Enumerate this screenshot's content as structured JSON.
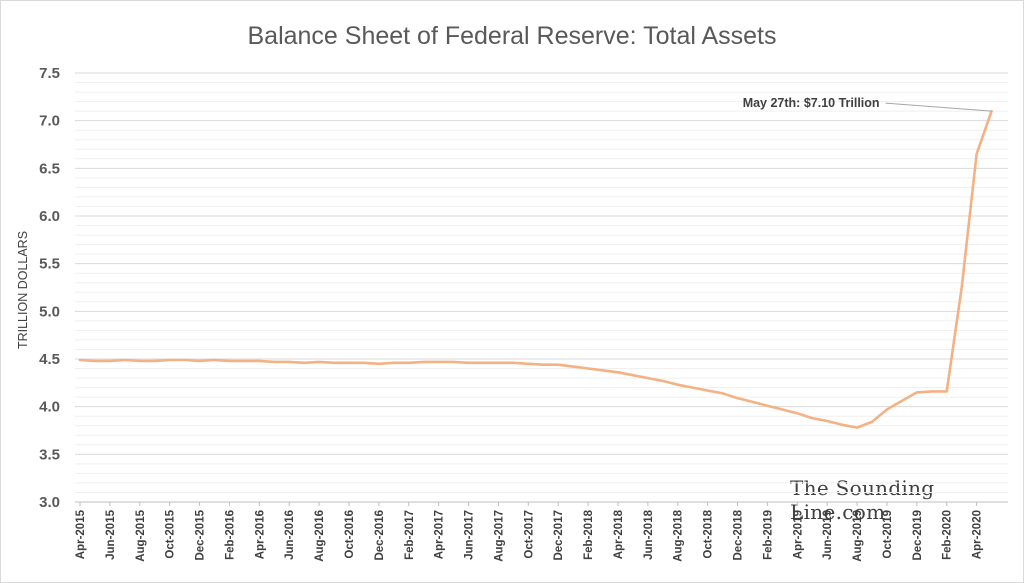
{
  "chart_data": {
    "type": "line",
    "title": "Balance Sheet of Federal Reserve: Total Assets",
    "xlabel": "",
    "ylabel": "TRILLION DOLLARS",
    "ylim": [
      3.0,
      7.5
    ],
    "yticks": [
      "3.0",
      "3.5",
      "4.0",
      "4.5",
      "5.0",
      "5.5",
      "6.0",
      "6.5",
      "7.0",
      "7.5"
    ],
    "xticks": [
      "Apr-2015",
      "Jun-2015",
      "Aug-2015",
      "Oct-2015",
      "Dec-2015",
      "Feb-2016",
      "Apr-2016",
      "Jun-2016",
      "Aug-2016",
      "Oct-2016",
      "Dec-2016",
      "Feb-2017",
      "Apr-2017",
      "Jun-2017",
      "Aug-2017",
      "Oct-2017",
      "Dec-2017",
      "Feb-2018",
      "Apr-2018",
      "Jun-2018",
      "Aug-2018",
      "Oct-2018",
      "Dec-2018",
      "Feb-2019",
      "Apr-2019",
      "Jun-2019",
      "Aug-2019",
      "Oct-2019",
      "Dec-2019",
      "Feb-2020",
      "Apr-2020"
    ],
    "grid": true,
    "series": [
      {
        "color": "#f4b183",
        "x": [
          "2015-04",
          "2015-05",
          "2015-06",
          "2015-07",
          "2015-08",
          "2015-09",
          "2015-10",
          "2015-11",
          "2015-12",
          "2016-01",
          "2016-02",
          "2016-03",
          "2016-04",
          "2016-05",
          "2016-06",
          "2016-07",
          "2016-08",
          "2016-09",
          "2016-10",
          "2016-11",
          "2016-12",
          "2017-01",
          "2017-02",
          "2017-03",
          "2017-04",
          "2017-05",
          "2017-06",
          "2017-07",
          "2017-08",
          "2017-09",
          "2017-10",
          "2017-11",
          "2017-12",
          "2018-01",
          "2018-02",
          "2018-03",
          "2018-04",
          "2018-05",
          "2018-06",
          "2018-07",
          "2018-08",
          "2018-09",
          "2018-10",
          "2018-11",
          "2018-12",
          "2019-01",
          "2019-02",
          "2019-03",
          "2019-04",
          "2019-05",
          "2019-06",
          "2019-07",
          "2019-08",
          "2019-09",
          "2019-10",
          "2019-11",
          "2019-12",
          "2020-01",
          "2020-02",
          "2020-03",
          "2020-04",
          "2020-05"
        ],
        "y": [
          4.49,
          4.48,
          4.48,
          4.49,
          4.48,
          4.48,
          4.49,
          4.49,
          4.48,
          4.49,
          4.48,
          4.48,
          4.48,
          4.47,
          4.47,
          4.46,
          4.47,
          4.46,
          4.46,
          4.46,
          4.45,
          4.46,
          4.46,
          4.47,
          4.47,
          4.47,
          4.46,
          4.46,
          4.46,
          4.46,
          4.45,
          4.44,
          4.44,
          4.42,
          4.4,
          4.38,
          4.36,
          4.33,
          4.3,
          4.27,
          4.23,
          4.2,
          4.17,
          4.14,
          4.09,
          4.05,
          4.01,
          3.97,
          3.93,
          3.88,
          3.85,
          3.81,
          3.78,
          3.84,
          3.97,
          4.06,
          4.15,
          4.16,
          4.16,
          5.25,
          6.65,
          7.1
        ]
      }
    ],
    "annotations": [
      {
        "text": "May 27th: $7.10 Trillion",
        "x": "2020-05",
        "y": 7.1
      }
    ]
  },
  "watermark": "The Sounding Line.com"
}
